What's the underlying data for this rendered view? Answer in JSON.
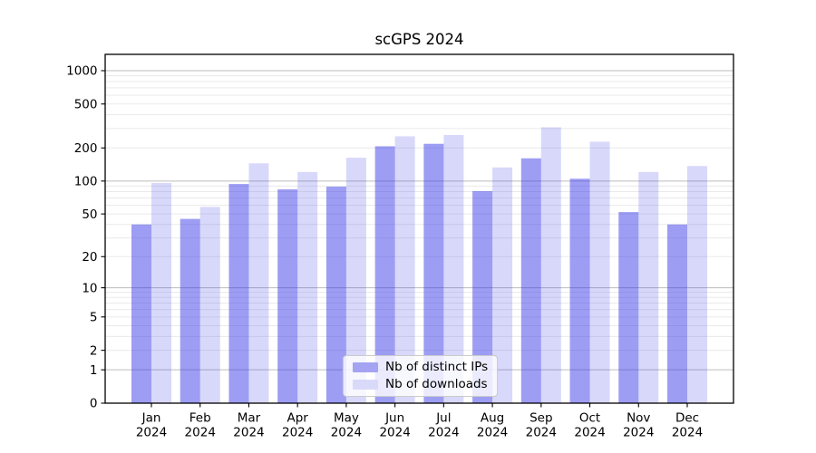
{
  "chart_data": {
    "type": "bar",
    "title": "scGPS 2024",
    "categories": [
      [
        "Jan",
        "2024"
      ],
      [
        "Feb",
        "2024"
      ],
      [
        "Mar",
        "2024"
      ],
      [
        "Apr",
        "2024"
      ],
      [
        "May",
        "2024"
      ],
      [
        "Jun",
        "2024"
      ],
      [
        "Jul",
        "2024"
      ],
      [
        "Aug",
        "2024"
      ],
      [
        "Sep",
        "2024"
      ],
      [
        "Oct",
        "2024"
      ],
      [
        "Nov",
        "2024"
      ],
      [
        "Dec",
        "2024"
      ]
    ],
    "series": [
      {
        "name": "Nb of distinct IPs",
        "color": "#a4a4f2",
        "values": [
          40,
          45,
          94,
          84,
          89,
          207,
          218,
          81,
          161,
          105,
          52,
          40
        ]
      },
      {
        "name": "Nb of downloads",
        "color": "#d9d9f9",
        "values": [
          96,
          58,
          145,
          121,
          163,
          255,
          262,
          133,
          308,
          228,
          121,
          137
        ]
      }
    ],
    "yscale": "log1p",
    "ylim": [
      0,
      1390
    ],
    "yticks": [
      0,
      1,
      2,
      5,
      10,
      20,
      50,
      100,
      200,
      500,
      1000
    ],
    "grid": {
      "major": [
        1,
        10,
        100,
        1000
      ],
      "major_color": "#bdbdbd",
      "minor_color": "#eaeaea"
    },
    "legend_position": "lower center",
    "xlabel": "",
    "ylabel": ""
  }
}
